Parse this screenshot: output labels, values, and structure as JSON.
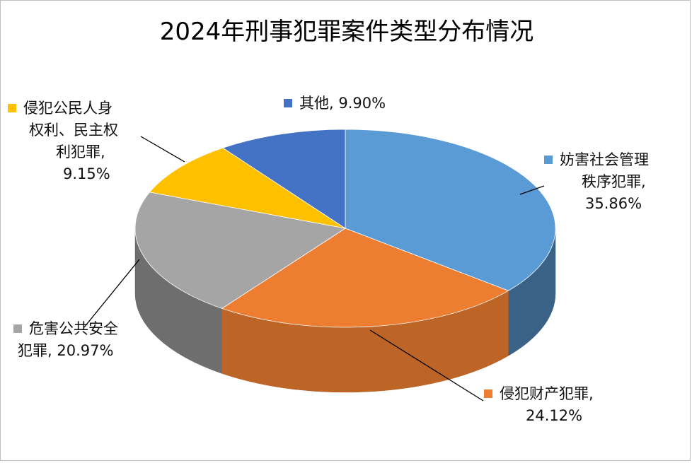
{
  "chart_data": {
    "type": "pie",
    "title": "2024年刑事犯罪案件类型分布情况",
    "slices": [
      {
        "label": "妨害社会管理秩序犯罪",
        "value": 35.86,
        "value_label": "35.86%",
        "color": "#5B9BD5"
      },
      {
        "label": "侵犯财产犯罪",
        "value": 24.12,
        "value_label": "24.12%",
        "color": "#ED7D31"
      },
      {
        "label": "危害公共安全犯罪",
        "value": 20.97,
        "value_label": "20.97%",
        "color": "#A5A5A5"
      },
      {
        "label": "侵犯公民人身权利、民主权利犯罪",
        "value": 9.15,
        "value_label": "9.15%",
        "color": "#FFC000"
      },
      {
        "label": "其他",
        "value": 9.9,
        "value_label": "9.90%",
        "color": "#4472C4"
      }
    ],
    "legend_lines": {
      "s0": [
        "妨害社会管理",
        "秩序犯罪,",
        "35.86%"
      ],
      "s1": [
        "侵犯财产犯罪,",
        "24.12%"
      ],
      "s2": [
        "危害公共安全",
        "犯罪, 20.97%"
      ],
      "s3": [
        "侵犯公民人身",
        "权利、民主权",
        "利犯罪,",
        "9.15%"
      ],
      "s4": [
        "其他, 9.90%"
      ]
    },
    "style": "3d-pie"
  }
}
